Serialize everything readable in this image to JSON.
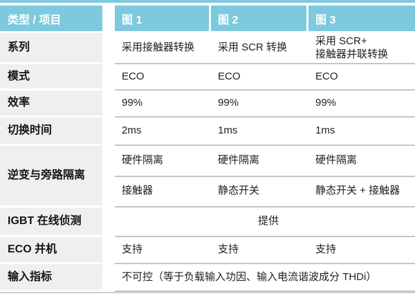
{
  "colors": {
    "header_bg": "#7ec9dd",
    "header_text": "#ffffff",
    "label_bg": "#efeff0",
    "divider": "#c3c5c7",
    "body_text": "#1f1f1f"
  },
  "header": {
    "corner": "类型 / 项目",
    "col1": "图 1",
    "col2": "图 2",
    "col3": "图 3"
  },
  "rows": {
    "series": {
      "label": "系列",
      "v1": "采用接触器转换",
      "v2": "采用 SCR 转换",
      "v3": "采用 SCR+\n接触器并联转换"
    },
    "mode": {
      "label": "模式",
      "v1": "ECO",
      "v2": "ECO",
      "v3": "ECO"
    },
    "efficiency": {
      "label": "效率",
      "v1": "99%",
      "v2": "99%",
      "v3": "99%"
    },
    "switch_time": {
      "label": "切换时间",
      "v1": "2ms",
      "v2": "1ms",
      "v3": "1ms"
    },
    "isolation": {
      "label": "逆变与旁路隔离",
      "sub1": {
        "v1": "硬件隔离",
        "v2": "硬件隔离",
        "v3": "硬件隔离"
      },
      "sub2": {
        "v1": "接触器",
        "v2": "静态开关",
        "v3": "静态开关 + 接触器"
      }
    },
    "igbt": {
      "label": "IGBT 在线侦测",
      "span": "提供"
    },
    "eco_parallel": {
      "label": "ECO 并机",
      "v1": "支持",
      "v2": "支持",
      "v3": "支持"
    },
    "input_index": {
      "label": "输入指标",
      "span": "不可控（等于负载输入功因、输入电流谐波成分 THDi）"
    }
  }
}
